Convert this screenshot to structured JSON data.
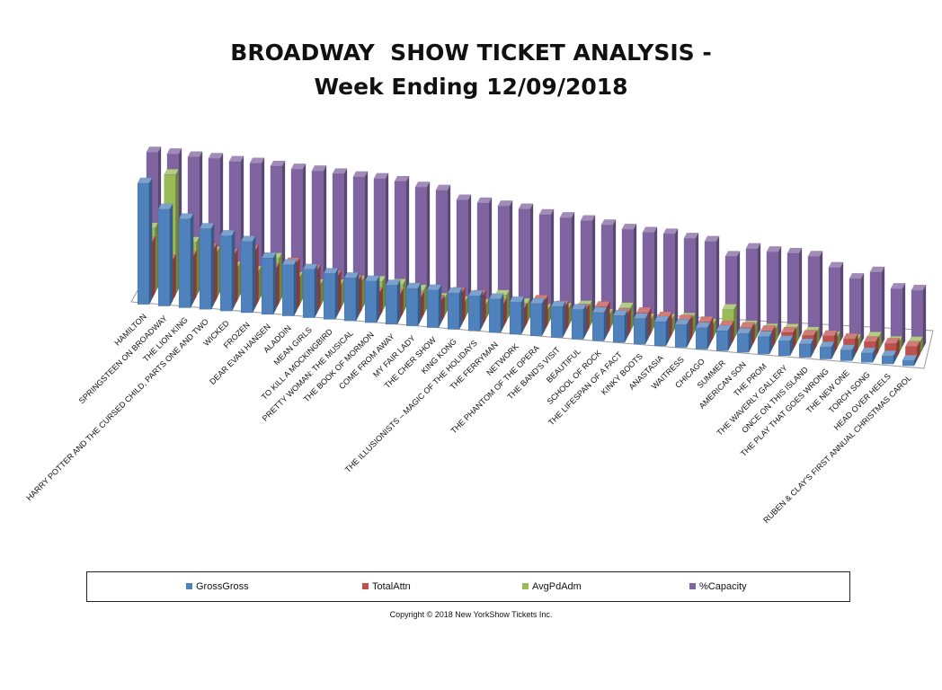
{
  "title": {
    "line1": "BROADWAY  SHOW TICKET ANALYSIS -",
    "line2": "Week Ending 12/09/2018"
  },
  "copyright": "Copyright © 2018 New YorkShow Tickets Inc.",
  "colors": {
    "GrossGross": "#4f81bd",
    "TotalAttn": "#c0504d",
    "AvgPdAdm": "#9bbb59",
    "%Capacity": "#8064a2"
  },
  "chart_data": {
    "type": "bar",
    "style": "3d-clustered-column",
    "title": "BROADWAY  SHOW TICKET ANALYSIS - Week Ending 12/09/2018",
    "legend_position": "bottom",
    "grid": false,
    "categories": [
      "HAMILTON",
      "SPRINGSTEEN ON BROADWAY",
      "THE LION KING",
      "HARRY POTTER AND THE CURSED CHILD, PARTS ONE AND TWO",
      "WICKED",
      "FROZEN",
      "DEAR EVAN HANSEN",
      "ALADDIN",
      "MEAN GIRLS",
      "TO KILL A MOCKINGBIRD",
      "PRETTY WOMAN: THE MUSICAL",
      "THE BOOK OF MORMON",
      "COME FROM AWAY",
      "MY FAIR LADY",
      "THE CHER SHOW",
      "KING KONG",
      "THE ILLUSIONISTS – MAGIC OF THE HOLIDAYS",
      "THE FERRYMAN",
      "NETWORK",
      "THE PHANTOM OF THE OPERA",
      "THE BAND'S VISIT",
      "BEAUTIFUL",
      "SCHOOL OF ROCK",
      "THE LIFESPAN OF A FACT",
      "KINKY BOOTS",
      "ANASTASIA",
      "WAITRESS",
      "CHICAGO",
      "SUMMER",
      "AMERICAN SON",
      "THE PROM",
      "THE WAVERLY GALLERY",
      "ONCE ON THIS ISLAND",
      "THE PLAY THAT GOES WRONG",
      "THE NEW ONE",
      "TORCH SONG",
      "HEAD OVER HEELS",
      "RUBEN & CLAY'S FIRST ANNUAL CHRISTMAS CAROL"
    ],
    "series": [
      {
        "name": "GrossGross",
        "values": [
          90,
          72,
          66,
          60,
          56,
          53,
          42,
          38,
          36,
          34,
          32,
          31,
          29,
          28,
          28,
          27,
          26,
          25,
          24,
          24,
          23,
          22,
          21,
          20,
          19,
          18,
          17,
          16,
          15,
          14,
          13,
          11,
          10,
          9,
          8,
          7,
          6,
          4
        ]
      },
      {
        "name": "TotalAttn",
        "values": [
          42,
          30,
          34,
          41,
          38,
          42,
          30,
          35,
          31,
          28,
          26,
          18,
          18,
          17,
          16,
          23,
          22,
          17,
          15,
          22,
          19,
          18,
          21,
          17,
          19,
          17,
          16,
          16,
          14,
          14,
          13,
          13,
          12,
          13,
          12,
          11,
          11,
          10
        ]
      },
      {
        "name": "AvgPdAdm",
        "values": [
          48,
          89,
          40,
          34,
          24,
          22,
          33,
          20,
          16,
          17,
          21,
          22,
          21,
          18,
          13,
          12,
          11,
          19,
          14,
          11,
          13,
          16,
          11,
          17,
          10,
          11,
          13,
          10,
          22,
          11,
          10,
          11,
          10,
          8,
          7,
          10,
          8,
          9
        ]
      },
      {
        "name": "%Capacity",
        "values": [
          100,
          100,
          99,
          99,
          98,
          98,
          97,
          96,
          96,
          95,
          94,
          94,
          93,
          90,
          89,
          83,
          82,
          81,
          80,
          77,
          76,
          75,
          73,
          71,
          70,
          70,
          68,
          67,
          57,
          64,
          63,
          63,
          62,
          55,
          48,
          54,
          43,
          43
        ]
      }
    ]
  }
}
